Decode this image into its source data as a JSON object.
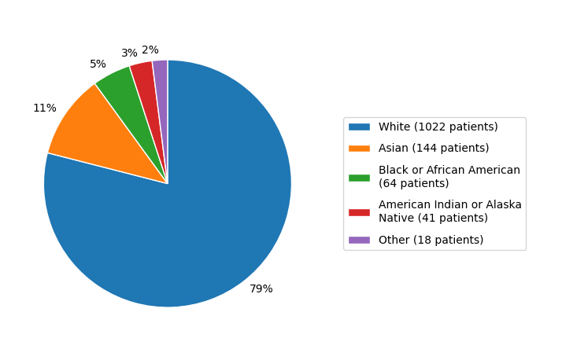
{
  "chart_data": {
    "type": "pie",
    "categories": [
      "White (1022 patients)",
      "Asian (144 patients)",
      "Black or African American\n(64 patients)",
      "American Indian or Alaska\nNative (41 patients)",
      "Other (18 patients)"
    ],
    "values": [
      79,
      11,
      5,
      3,
      2
    ],
    "value_labels": [
      "79%",
      "11%",
      "5%",
      "3%",
      "2%"
    ],
    "data_labels": true,
    "legend": "center left"
  }
}
